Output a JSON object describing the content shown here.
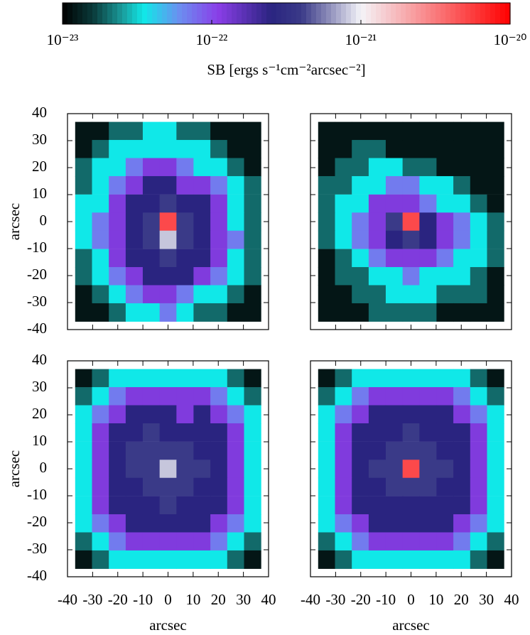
{
  "colorbar": {
    "label": "SB [ergs s⁻¹cm⁻²arcsec⁻²]",
    "log": true,
    "lim": [
      1e-23,
      1e-20
    ],
    "ticks": [
      {
        "value": 1e-23,
        "label": "10⁻²³"
      },
      {
        "value": 1e-22,
        "label": "10⁻²²"
      },
      {
        "value": 1e-21,
        "label": "10⁻²¹"
      },
      {
        "value": 1e-20,
        "label": "10⁻²⁰"
      }
    ],
    "colormap": [
      {
        "value": 1e-23,
        "color": "#000000"
      },
      {
        "value": 1.6e-23,
        "color": "#0a3a3a"
      },
      {
        "value": 2.5e-23,
        "color": "#1a9a9a"
      },
      {
        "value": 3.5e-23,
        "color": "#10e8e8"
      },
      {
        "value": 6e-23,
        "color": "#6a90f0"
      },
      {
        "value": 1.1e-22,
        "color": "#8a3ee8"
      },
      {
        "value": 2.5e-22,
        "color": "#2a2480"
      },
      {
        "value": 4e-22,
        "color": "#3a3a88"
      },
      {
        "value": 6e-22,
        "color": "#8a8ab8"
      },
      {
        "value": 1e-21,
        "color": "#f4f4f8"
      },
      {
        "value": 1e-20,
        "color": "#ff0000"
      }
    ]
  },
  "chart_data": [
    {
      "type": "heatmap",
      "ylabel": "arcsec",
      "xtick_labels": false,
      "ytick_labels": true,
      "x": [
        -33.6,
        -26.9,
        -20.2,
        -13.5,
        -6.7,
        0,
        6.7,
        13.5,
        20.2,
        26.9,
        33.6
      ],
      "y": [
        33.6,
        26.9,
        20.2,
        13.5,
        6.7,
        0,
        -6.7,
        -13.5,
        -20.2,
        -26.9,
        -33.6
      ],
      "xlim": [
        -40,
        40
      ],
      "ylim": [
        -40,
        40
      ],
      "xticks": [
        -40,
        -30,
        -20,
        -10,
        0,
        10,
        20,
        30,
        40
      ],
      "yticks": [
        -40,
        -30,
        -20,
        -10,
        0,
        10,
        20,
        30,
        40
      ],
      "z": [
        [
          1.2e-23,
          1.2e-23,
          2e-23,
          2e-23,
          3.5e-23,
          3.5e-23,
          2e-23,
          2e-23,
          1.2e-23,
          1.2e-23,
          1.2e-23
        ],
        [
          1.2e-23,
          2e-23,
          3.5e-23,
          3.5e-23,
          3.5e-23,
          3.5e-23,
          3.5e-23,
          3.5e-23,
          2e-23,
          1.2e-23,
          1.2e-23
        ],
        [
          2e-23,
          3.5e-23,
          3.5e-23,
          7e-23,
          1.2e-22,
          1.2e-22,
          7e-23,
          3.5e-23,
          3.5e-23,
          2e-23,
          1.2e-23
        ],
        [
          2e-23,
          3.5e-23,
          7e-23,
          1.2e-22,
          2.5e-22,
          2.5e-22,
          1.2e-22,
          1.2e-22,
          7e-23,
          3.5e-23,
          2e-23
        ],
        [
          3.5e-23,
          3.5e-23,
          1.2e-22,
          2.5e-22,
          2.5e-22,
          4e-22,
          2.5e-22,
          2.5e-22,
          1.2e-22,
          3.5e-23,
          2e-23
        ],
        [
          3.5e-23,
          7e-23,
          1.2e-22,
          2.5e-22,
          4e-22,
          5e-21,
          4e-22,
          2.5e-22,
          1.2e-22,
          3.5e-23,
          2e-23
        ],
        [
          3.5e-23,
          7e-23,
          1.2e-22,
          2.5e-22,
          4e-22,
          8e-22,
          4e-22,
          2.5e-22,
          1.2e-22,
          7e-23,
          2e-23
        ],
        [
          2e-23,
          3.5e-23,
          1.2e-22,
          2.5e-22,
          2.5e-22,
          4e-22,
          2.5e-22,
          2.5e-22,
          1.2e-22,
          3.5e-23,
          2e-23
        ],
        [
          2e-23,
          3.5e-23,
          7e-23,
          1.2e-22,
          2.5e-22,
          2.5e-22,
          2.5e-22,
          1.2e-22,
          7e-23,
          3.5e-23,
          2e-23
        ],
        [
          1.2e-23,
          2e-23,
          3.5e-23,
          7e-23,
          1.2e-22,
          1.2e-22,
          7e-23,
          3.5e-23,
          3.5e-23,
          2e-23,
          1.2e-23
        ],
        [
          1.2e-23,
          1.2e-23,
          2e-23,
          3.5e-23,
          3.5e-23,
          7e-23,
          3.5e-23,
          2e-23,
          2e-23,
          1.2e-23,
          1.2e-23
        ]
      ]
    },
    {
      "type": "heatmap",
      "xtick_labels": false,
      "ytick_labels": false,
      "x": [
        -33.6,
        -26.9,
        -20.2,
        -13.5,
        -6.7,
        0,
        6.7,
        13.5,
        20.2,
        26.9,
        33.6
      ],
      "y": [
        33.6,
        26.9,
        20.2,
        13.5,
        6.7,
        0,
        -6.7,
        -13.5,
        -20.2,
        -26.9,
        -33.6
      ],
      "xlim": [
        -40,
        40
      ],
      "ylim": [
        -40,
        40
      ],
      "xticks": [
        -40,
        -30,
        -20,
        -10,
        0,
        10,
        20,
        30,
        40
      ],
      "yticks": [
        -40,
        -30,
        -20,
        -10,
        0,
        10,
        20,
        30,
        40
      ],
      "z": [
        [
          1.2e-23,
          1.2e-23,
          1.2e-23,
          1.2e-23,
          1.2e-23,
          1.2e-23,
          1.2e-23,
          1.2e-23,
          1.2e-23,
          1.2e-23,
          1.2e-23
        ],
        [
          1.2e-23,
          1.2e-23,
          2e-23,
          2e-23,
          1.2e-23,
          1.2e-23,
          1.2e-23,
          1.2e-23,
          1.2e-23,
          1.2e-23,
          1.2e-23
        ],
        [
          1.2e-23,
          2e-23,
          2e-23,
          3.5e-23,
          3.5e-23,
          2e-23,
          2e-23,
          1.2e-23,
          1.2e-23,
          1.2e-23,
          1.2e-23
        ],
        [
          2e-23,
          2e-23,
          3.5e-23,
          3.5e-23,
          7e-23,
          7e-23,
          3.5e-23,
          3.5e-23,
          2e-23,
          1.2e-23,
          1.2e-23
        ],
        [
          2e-23,
          3.5e-23,
          3.5e-23,
          1.2e-22,
          1.2e-22,
          1.2e-22,
          7e-23,
          3.5e-23,
          3.5e-23,
          2e-23,
          1.2e-23
        ],
        [
          2e-23,
          3.5e-23,
          7e-23,
          1.2e-22,
          4e-22,
          5e-21,
          2.5e-22,
          1.2e-22,
          7e-23,
          3.5e-23,
          2e-23
        ],
        [
          2e-23,
          3.5e-23,
          7e-23,
          1.2e-22,
          2.5e-22,
          4e-22,
          2.5e-22,
          1.2e-22,
          7e-23,
          3.5e-23,
          2e-23
        ],
        [
          1.2e-23,
          2e-23,
          3.5e-23,
          7e-23,
          1.2e-22,
          1.2e-22,
          1.2e-22,
          7e-23,
          3.5e-23,
          3.5e-23,
          2e-23
        ],
        [
          1.2e-23,
          2e-23,
          2e-23,
          3.5e-23,
          3.5e-23,
          7e-23,
          3.5e-23,
          3.5e-23,
          3.5e-23,
          2e-23,
          1.2e-23
        ],
        [
          1.2e-23,
          1.2e-23,
          2e-23,
          2e-23,
          3.5e-23,
          3.5e-23,
          3.5e-23,
          2e-23,
          2e-23,
          2e-23,
          1.2e-23
        ],
        [
          1.2e-23,
          1.2e-23,
          1.2e-23,
          2e-23,
          2e-23,
          2e-23,
          2e-23,
          1.2e-23,
          1.2e-23,
          1.2e-23,
          1.2e-23
        ]
      ]
    },
    {
      "type": "heatmap",
      "xlabel": "arcsec",
      "ylabel": "arcsec",
      "xtick_labels": true,
      "ytick_labels": true,
      "x": [
        -33.6,
        -26.9,
        -20.2,
        -13.5,
        -6.7,
        0,
        6.7,
        13.5,
        20.2,
        26.9,
        33.6
      ],
      "y": [
        33.6,
        26.9,
        20.2,
        13.5,
        6.7,
        0,
        -6.7,
        -13.5,
        -20.2,
        -26.9,
        -33.6
      ],
      "xlim": [
        -40,
        40
      ],
      "ylim": [
        -40,
        40
      ],
      "xticks": [
        -40,
        -30,
        -20,
        -10,
        0,
        10,
        20,
        30,
        40
      ],
      "yticks": [
        -40,
        -30,
        -20,
        -10,
        0,
        10,
        20,
        30,
        40
      ],
      "z": [
        [
          1.2e-23,
          2e-23,
          3.5e-23,
          3.5e-23,
          3.5e-23,
          3.5e-23,
          3.5e-23,
          3.5e-23,
          3.5e-23,
          2e-23,
          1.2e-23
        ],
        [
          2e-23,
          3.5e-23,
          7e-23,
          1.2e-22,
          1.2e-22,
          1.2e-22,
          1.2e-22,
          1.2e-22,
          7e-23,
          3.5e-23,
          2e-23
        ],
        [
          3.5e-23,
          7e-23,
          1.2e-22,
          2.5e-22,
          2.5e-22,
          2.5e-22,
          1.2e-22,
          2.5e-22,
          1.2e-22,
          7e-23,
          3.5e-23
        ],
        [
          3.5e-23,
          1.2e-22,
          2.5e-22,
          2.5e-22,
          4e-22,
          2.5e-22,
          2.5e-22,
          2.5e-22,
          2.5e-22,
          1.2e-22,
          3.5e-23
        ],
        [
          3.5e-23,
          1.2e-22,
          2.5e-22,
          4e-22,
          4e-22,
          4e-22,
          4e-22,
          2.5e-22,
          2.5e-22,
          1.2e-22,
          3.5e-23
        ],
        [
          3.5e-23,
          1.2e-22,
          2.5e-22,
          4e-22,
          4e-22,
          8e-22,
          4e-22,
          4e-22,
          2.5e-22,
          1.2e-22,
          3.5e-23
        ],
        [
          3.5e-23,
          1.2e-22,
          2.5e-22,
          2.5e-22,
          4e-22,
          4e-22,
          4e-22,
          2.5e-22,
          2.5e-22,
          1.2e-22,
          3.5e-23
        ],
        [
          3.5e-23,
          1.2e-22,
          2.5e-22,
          2.5e-22,
          2.5e-22,
          4e-22,
          2.5e-22,
          2.5e-22,
          2.5e-22,
          1.2e-22,
          3.5e-23
        ],
        [
          3.5e-23,
          7e-23,
          1.2e-22,
          2.5e-22,
          2.5e-22,
          2.5e-22,
          2.5e-22,
          2.5e-22,
          1.2e-22,
          7e-23,
          3.5e-23
        ],
        [
          2e-23,
          3.5e-23,
          7e-23,
          1.2e-22,
          1.2e-22,
          1.2e-22,
          1.2e-22,
          1.2e-22,
          7e-23,
          3.5e-23,
          2e-23
        ],
        [
          1.2e-23,
          2e-23,
          3.5e-23,
          3.5e-23,
          3.5e-23,
          3.5e-23,
          3.5e-23,
          3.5e-23,
          3.5e-23,
          2e-23,
          1.2e-23
        ]
      ]
    },
    {
      "type": "heatmap",
      "xlabel": "arcsec",
      "xtick_labels": true,
      "ytick_labels": false,
      "x": [
        -33.6,
        -26.9,
        -20.2,
        -13.5,
        -6.7,
        0,
        6.7,
        13.5,
        20.2,
        26.9,
        33.6
      ],
      "y": [
        33.6,
        26.9,
        20.2,
        13.5,
        6.7,
        0,
        -6.7,
        -13.5,
        -20.2,
        -26.9,
        -33.6
      ],
      "xlim": [
        -40,
        40
      ],
      "ylim": [
        -40,
        40
      ],
      "xticks": [
        -40,
        -30,
        -20,
        -10,
        0,
        10,
        20,
        30,
        40
      ],
      "yticks": [
        -40,
        -30,
        -20,
        -10,
        0,
        10,
        20,
        30,
        40
      ],
      "z": [
        [
          1.2e-23,
          2e-23,
          3.5e-23,
          3.5e-23,
          3.5e-23,
          3.5e-23,
          3.5e-23,
          3.5e-23,
          3.5e-23,
          2e-23,
          1.2e-23
        ],
        [
          2e-23,
          3.5e-23,
          7e-23,
          1.2e-22,
          1.2e-22,
          1.2e-22,
          1.2e-22,
          1.2e-22,
          7e-23,
          3.5e-23,
          2e-23
        ],
        [
          3.5e-23,
          7e-23,
          1.2e-22,
          2.5e-22,
          2.5e-22,
          2.5e-22,
          2.5e-22,
          2.5e-22,
          1.2e-22,
          7e-23,
          3.5e-23
        ],
        [
          3.5e-23,
          1.2e-22,
          2.5e-22,
          2.5e-22,
          2.5e-22,
          4e-22,
          2.5e-22,
          2.5e-22,
          2.5e-22,
          1.2e-22,
          3.5e-23
        ],
        [
          3.5e-23,
          1.2e-22,
          2.5e-22,
          2.5e-22,
          4e-22,
          4e-22,
          4e-22,
          2.5e-22,
          2.5e-22,
          1.2e-22,
          3.5e-23
        ],
        [
          3.5e-23,
          1.2e-22,
          2.5e-22,
          4e-22,
          4e-22,
          5e-21,
          4e-22,
          4e-22,
          2.5e-22,
          1.2e-22,
          3.5e-23
        ],
        [
          3.5e-23,
          1.2e-22,
          2.5e-22,
          2.5e-22,
          4e-22,
          4e-22,
          4e-22,
          2.5e-22,
          2.5e-22,
          1.2e-22,
          3.5e-23
        ],
        [
          3.5e-23,
          1.2e-22,
          2.5e-22,
          2.5e-22,
          2.5e-22,
          2.5e-22,
          2.5e-22,
          2.5e-22,
          2.5e-22,
          1.2e-22,
          3.5e-23
        ],
        [
          3.5e-23,
          7e-23,
          1.2e-22,
          2.5e-22,
          2.5e-22,
          2.5e-22,
          2.5e-22,
          2.5e-22,
          1.2e-22,
          7e-23,
          3.5e-23
        ],
        [
          2e-23,
          3.5e-23,
          7e-23,
          1.2e-22,
          1.2e-22,
          1.2e-22,
          1.2e-22,
          1.2e-22,
          7e-23,
          3.5e-23,
          2e-23
        ],
        [
          1.2e-23,
          2e-23,
          3.5e-23,
          3.5e-23,
          3.5e-23,
          3.5e-23,
          3.5e-23,
          3.5e-23,
          3.5e-23,
          2e-23,
          1.2e-23
        ]
      ]
    }
  ]
}
